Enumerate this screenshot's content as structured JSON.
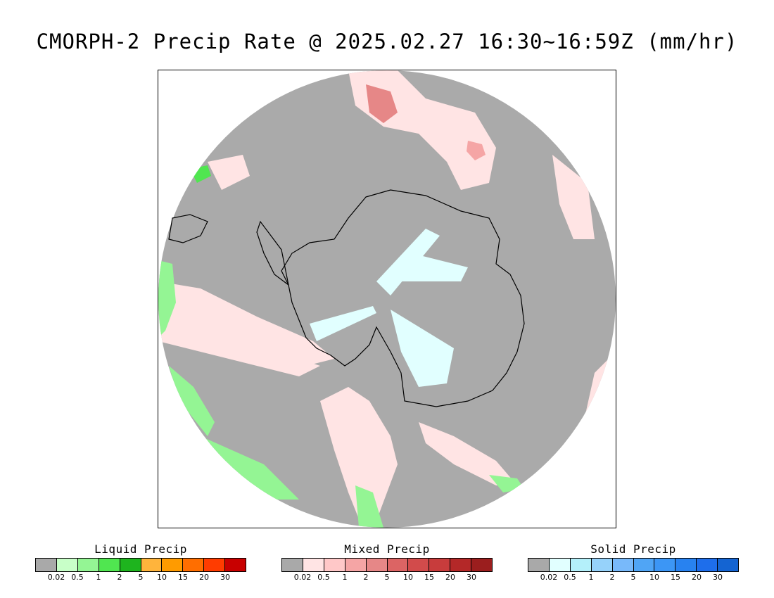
{
  "title": "CMORPH-2 Precip Rate @ 2025.02.27 16:30~16:59Z (mm/hr)",
  "map": {
    "background_color": "#aaaaaa",
    "coast_color": "#000000"
  },
  "legends": [
    {
      "title": "Liquid Precip",
      "colors": [
        "#a9a9a9",
        "#c8ffc8",
        "#94f594",
        "#50e650",
        "#1eb41e",
        "#ffb43c",
        "#ff9b00",
        "#ff6e00",
        "#ff3c00",
        "#c80000"
      ],
      "ticks": [
        "0.02",
        "0.5",
        "1",
        "2",
        "5",
        "10",
        "15",
        "20",
        "30"
      ]
    },
    {
      "title": "Mixed Precip",
      "colors": [
        "#a9a9a9",
        "#ffe4e4",
        "#ffc8c8",
        "#f5a5a5",
        "#e68787",
        "#dc6464",
        "#d24b4b",
        "#c83c3c",
        "#b42828",
        "#9b1e1e"
      ],
      "ticks": [
        "0.02",
        "0.5",
        "1",
        "2",
        "5",
        "10",
        "15",
        "20",
        "30"
      ]
    },
    {
      "title": "Solid Precip",
      "colors": [
        "#a9a9a9",
        "#e1ffff",
        "#b4f0fa",
        "#96d2fa",
        "#78b9fa",
        "#50a5f5",
        "#3c96f5",
        "#2882f0",
        "#1e6eeb",
        "#1464d2"
      ],
      "ticks": [
        "0.02",
        "0.5",
        "1",
        "2",
        "5",
        "10",
        "15",
        "20",
        "30"
      ]
    }
  ]
}
